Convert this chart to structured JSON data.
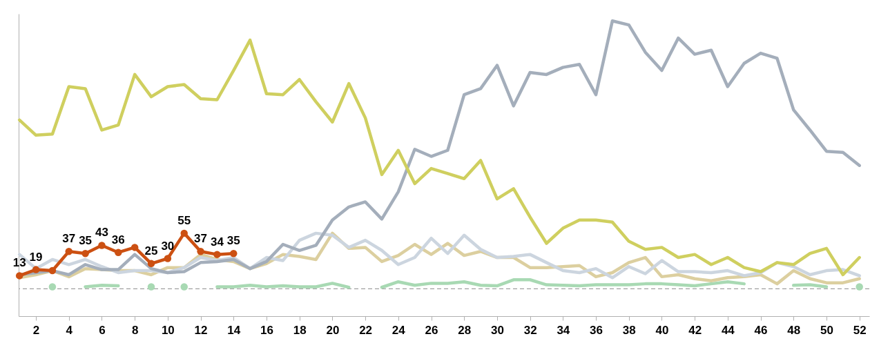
{
  "chart_data": {
    "type": "line",
    "x": [
      1,
      2,
      3,
      4,
      5,
      6,
      7,
      8,
      9,
      10,
      11,
      12,
      13,
      14,
      15,
      16,
      17,
      18,
      19,
      20,
      21,
      22,
      23,
      24,
      25,
      26,
      27,
      28,
      29,
      30,
      31,
      32,
      33,
      34,
      35,
      36,
      37,
      38,
      39,
      40,
      41,
      42,
      43,
      44,
      45,
      46,
      47,
      48,
      49,
      50,
      51,
      52
    ],
    "xlim": [
      0.95,
      52.6
    ],
    "xticks": [
      2,
      4,
      6,
      8,
      10,
      12,
      14,
      16,
      18,
      20,
      22,
      24,
      26,
      28,
      30,
      32,
      34,
      36,
      38,
      40,
      42,
      44,
      46,
      48,
      50,
      52
    ],
    "ylim": [
      -27,
      272
    ],
    "tick_labels": "x",
    "grid": false,
    "line_style": "solid",
    "marker": "none",
    "ref_lines": [
      {
        "axis": "y",
        "value": 0,
        "label": null,
        "color": "#a0a0a0",
        "line_style": "dashed"
      }
    ],
    "series": [
      {
        "color": "#a8d9b3",
        "values": [
          null,
          null,
          2,
          null,
          2,
          3.5,
          3,
          null,
          2,
          null,
          2,
          null,
          2,
          2,
          3.5,
          2,
          3,
          2,
          2,
          5.5,
          1.5,
          null,
          1.5,
          7,
          3.5,
          5.5,
          5.5,
          7,
          3.5,
          3,
          9,
          9,
          4,
          3.5,
          3,
          4,
          4,
          4,
          5,
          5,
          4,
          3,
          5,
          7,
          5,
          null,
          null,
          3.5,
          4,
          2,
          null,
          2
        ]
      },
      {
        "color": "#dccf9f",
        "values": [
          11,
          14,
          18,
          12,
          20,
          19,
          18,
          18,
          14,
          21,
          21,
          34,
          29,
          27,
          20,
          25,
          34,
          32,
          29,
          55,
          40,
          41,
          27,
          33,
          44,
          34,
          45,
          33,
          37,
          31,
          31,
          21,
          21,
          22,
          23,
          12,
          16,
          26,
          31,
          12,
          14,
          10,
          8,
          11,
          12,
          14,
          5,
          18,
          10,
          6,
          6,
          10
        ]
      },
      {
        "color": "#ccd5df",
        "values": [
          34,
          20,
          29,
          24,
          29,
          22,
          16,
          18,
          18,
          16,
          21,
          31,
          28,
          31,
          20,
          31,
          28,
          48,
          55,
          53,
          41,
          48,
          38,
          24,
          31,
          50,
          35,
          53,
          39,
          31,
          32,
          34,
          26,
          18,
          16,
          20,
          11,
          22,
          15,
          28,
          17,
          17,
          16,
          18,
          13,
          16,
          26,
          22,
          14,
          18,
          19,
          13
        ]
      },
      {
        "color": "#a4aebb",
        "values": [
          14,
          16,
          18,
          14,
          24,
          19,
          19,
          34,
          20,
          16,
          17,
          26,
          27,
          29,
          20,
          27,
          44,
          38,
          43,
          68,
          81,
          86,
          69,
          96,
          138,
          131,
          137,
          192,
          198,
          221,
          181,
          214,
          212,
          219,
          222,
          192,
          265,
          261,
          234,
          216,
          248,
          232,
          236,
          200,
          223,
          233,
          228,
          177,
          157,
          136,
          135,
          122
        ]
      },
      {
        "color": "#cfcf5f",
        "values": [
          167,
          152,
          153,
          200,
          198,
          157,
          162,
          212,
          190,
          200,
          202,
          188,
          187,
          216,
          246,
          193,
          192,
          207,
          185,
          165,
          203,
          169,
          113,
          137,
          104,
          119,
          114,
          109,
          127,
          89,
          99,
          71,
          45,
          60,
          68,
          68,
          66,
          47,
          39,
          41,
          31,
          34,
          24,
          31,
          21,
          17,
          26,
          24,
          35,
          40,
          14,
          31
        ]
      },
      {
        "color": "#cc5012",
        "marker": "circle",
        "x": [
          1,
          2,
          3,
          4,
          5,
          6,
          7,
          8,
          9,
          10,
          11,
          12,
          13,
          14
        ],
        "values": [
          13,
          19,
          18,
          37,
          35,
          43,
          36,
          41,
          25,
          30,
          55,
          37,
          34,
          35
        ],
        "value_labels": [
          "13",
          "19",
          null,
          "37",
          "35",
          "43",
          "36",
          null,
          "25",
          "30",
          "55",
          "37",
          "34",
          "35"
        ]
      }
    ]
  }
}
